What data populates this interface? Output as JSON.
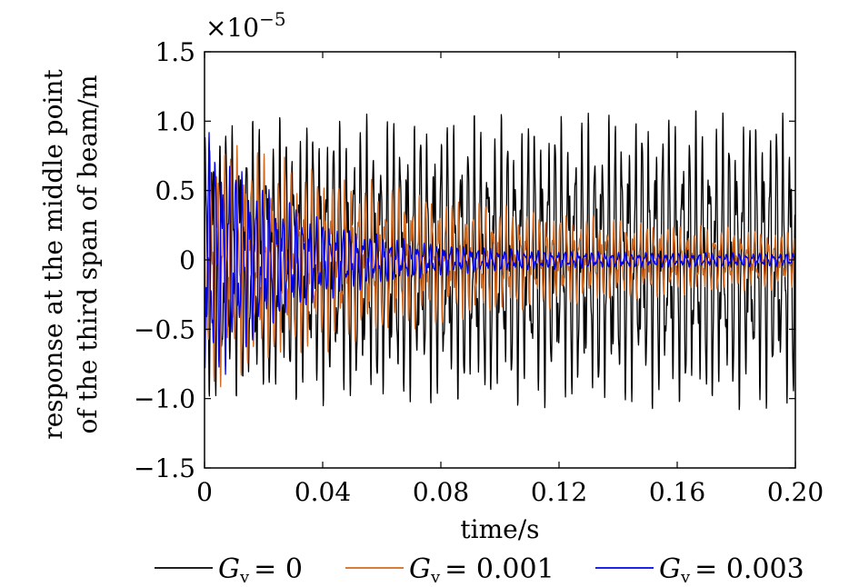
{
  "chart_data": {
    "type": "line",
    "exponent_label": "×10",
    "exponent_power": "−5",
    "xlabel": "time/s",
    "ylabel_line1": "response at the middle point",
    "ylabel_line2": "of the third span of beam/m",
    "xlim": [
      0,
      0.2
    ],
    "ylim": [
      -1.5,
      1.5
    ],
    "x_ticks": [
      0,
      0.04,
      0.08,
      0.12,
      0.16,
      0.2
    ],
    "x_tick_labels": [
      "0",
      "0.04",
      "0.08",
      "0.12",
      "0.16",
      "0.20"
    ],
    "y_ticks": [
      1.5,
      1.0,
      0.5,
      0,
      -0.5,
      -1.0,
      -1.5
    ],
    "y_tick_labels": [
      "1.5",
      "1.0",
      "0.5",
      "0",
      "−0.5",
      "−1.0",
      "−1.5"
    ],
    "grid": false,
    "legend_position": "bottom",
    "series": [
      {
        "legend_symbol": "G",
        "legend_sub": "v",
        "legend_value": "= 0",
        "color": "#000000",
        "envelope": {
          "start": 1.05,
          "end": 1.12,
          "at_x": [
            0,
            0.2
          ]
        },
        "decay_tau": null
      },
      {
        "legend_symbol": "G",
        "legend_sub": "v",
        "legend_value": "= 0.001",
        "color": "#d2691e",
        "envelope": {
          "start": 1.0,
          "end": 0.12,
          "at_x": [
            0,
            0.2
          ]
        },
        "decay_tau": 0.09
      },
      {
        "legend_symbol": "G",
        "legend_sub": "v",
        "legend_value": "= 0.003",
        "color": "#0000ee",
        "envelope": {
          "start": 1.05,
          "end": 0.05,
          "at_x": [
            0,
            0.2
          ]
        },
        "decay_tau": 0.03
      }
    ]
  }
}
